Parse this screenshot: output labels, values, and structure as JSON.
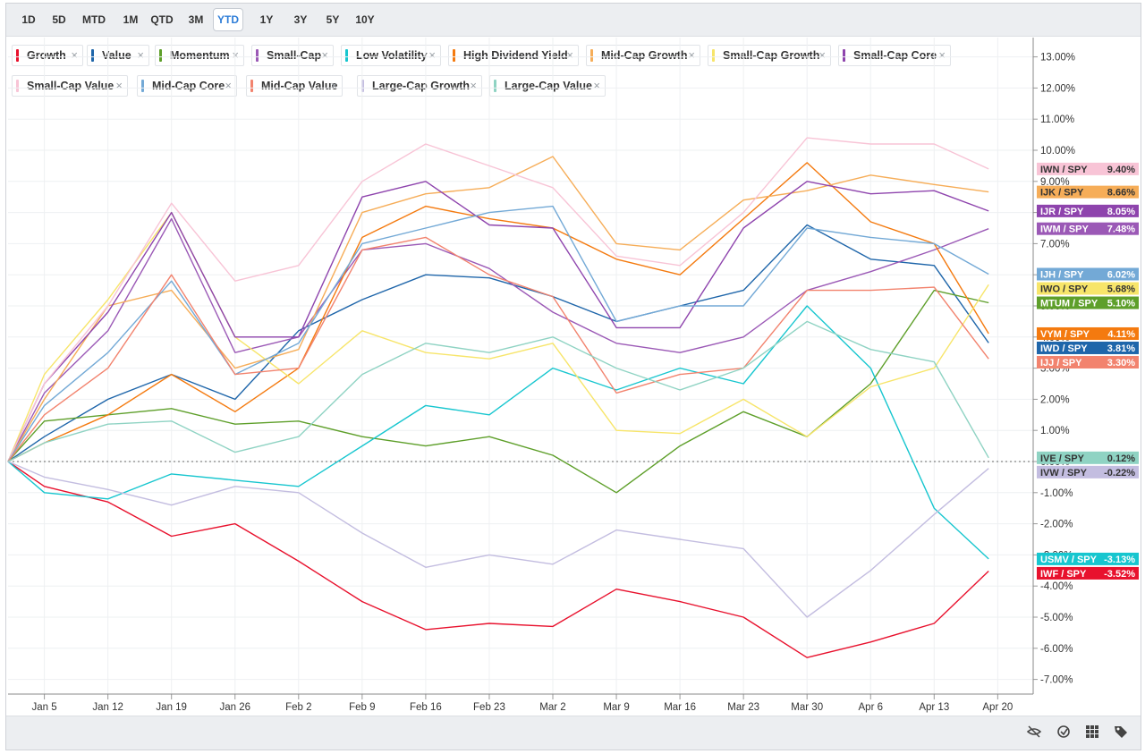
{
  "ranges": [
    "1D",
    "5D",
    "MTD",
    "1M",
    "QTD",
    "3M",
    "YTD",
    "1Y",
    "3Y",
    "5Y",
    "10Y"
  ],
  "active_range": "YTD",
  "toolbar_icons": [
    "hide-icon",
    "compare-icon",
    "grid-icon",
    "tag-icon"
  ],
  "chart_data": {
    "type": "line",
    "title": "",
    "xlabel": "",
    "ylabel": "",
    "ylim": [
      -7.5,
      13.5
    ],
    "x_ticks": [
      "Jan 5",
      "Jan 12",
      "Jan 19",
      "Jan 26",
      "Feb 2",
      "Feb 9",
      "Feb 16",
      "Feb 23",
      "Mar 2",
      "Mar 9",
      "Mar 16",
      "Mar 23",
      "Mar 30",
      "Apr 6",
      "Apr 13",
      "Apr 20"
    ],
    "x_tick_days": [
      4,
      11,
      18,
      25,
      32,
      39,
      46,
      53,
      60,
      67,
      74,
      81,
      88,
      95,
      102,
      109
    ],
    "y_ticks": [
      13,
      12,
      11,
      10,
      9,
      8,
      7,
      6,
      5,
      4,
      3,
      2,
      1,
      0,
      -1,
      -2,
      -3,
      -4,
      -5,
      -6,
      -7
    ],
    "y_tick_labels": [
      "13.00%",
      "12.00%",
      "11.00%",
      "10.00%",
      "9.00%",
      "8.00%",
      "7.00%",
      "6.00%",
      "5.00%",
      "4.00%",
      "3.00%",
      "2.00%",
      "1.00%",
      "0.00%",
      "-1.00%",
      "-2.00%",
      "-3.00%",
      "-4.00%",
      "-5.00%",
      "-6.00%",
      "-7.00%"
    ],
    "series": [
      {
        "name": "Growth",
        "ticker": "IWF / SPY",
        "last": "-3.52%",
        "color": "#e8112d",
        "x": [
          0,
          4,
          11,
          18,
          25,
          32,
          39,
          46,
          53,
          60,
          67,
          74,
          81,
          88,
          95,
          102,
          108
        ],
        "values": [
          0,
          -0.8,
          -1.3,
          -2.4,
          -2.0,
          -3.2,
          -4.5,
          -5.4,
          -5.2,
          -5.3,
          -4.1,
          -4.5,
          -5.0,
          -6.3,
          -5.8,
          -5.2,
          -3.52
        ]
      },
      {
        "name": "Value",
        "ticker": "IWD / SPY",
        "last": "3.81%",
        "color": "#1f66aa",
        "x": [
          0,
          4,
          11,
          18,
          25,
          32,
          39,
          46,
          53,
          60,
          67,
          74,
          81,
          88,
          95,
          102,
          108
        ],
        "values": [
          0,
          0.8,
          2.0,
          2.8,
          2.0,
          4.2,
          5.2,
          6.0,
          5.9,
          5.3,
          4.5,
          5.0,
          5.5,
          7.6,
          6.5,
          6.3,
          3.81
        ]
      },
      {
        "name": "Momentum",
        "ticker": "MTUM / SPY",
        "last": "5.10%",
        "color": "#5e9f2a",
        "x": [
          0,
          4,
          11,
          18,
          25,
          32,
          39,
          46,
          53,
          60,
          67,
          74,
          81,
          88,
          95,
          102,
          108
        ],
        "values": [
          0,
          1.3,
          1.5,
          1.7,
          1.2,
          1.3,
          0.8,
          0.5,
          0.8,
          0.2,
          -1.0,
          0.5,
          1.6,
          0.8,
          2.5,
          5.5,
          5.1
        ]
      },
      {
        "name": "Small-Cap",
        "ticker": "IWM / SPY",
        "last": "7.48%",
        "color": "#9b59b6",
        "x": [
          0,
          4,
          11,
          18,
          25,
          32,
          39,
          46,
          53,
          60,
          67,
          74,
          81,
          88,
          95,
          102,
          108
        ],
        "values": [
          0,
          2.2,
          4.2,
          7.8,
          3.5,
          4.0,
          6.8,
          7.0,
          6.2,
          4.8,
          3.8,
          3.5,
          4.0,
          5.5,
          6.1,
          6.8,
          7.48
        ]
      },
      {
        "name": "Low Volatility",
        "ticker": "USMV / SPY",
        "last": "-3.13%",
        "color": "#17c6cf",
        "x": [
          0,
          4,
          11,
          18,
          25,
          32,
          39,
          46,
          53,
          60,
          67,
          74,
          81,
          88,
          95,
          102,
          108
        ],
        "values": [
          0,
          -1.0,
          -1.2,
          -0.4,
          -0.6,
          -0.8,
          0.5,
          1.8,
          1.5,
          3.0,
          2.3,
          3.0,
          2.5,
          5.0,
          3.0,
          -1.5,
          -3.13
        ]
      },
      {
        "name": "High Dividend Yield",
        "ticker": "VYM / SPY",
        "last": "4.11%",
        "color": "#f47a0f",
        "x": [
          0,
          4,
          11,
          18,
          25,
          32,
          39,
          46,
          53,
          60,
          67,
          74,
          81,
          88,
          95,
          102,
          108
        ],
        "values": [
          0,
          0.6,
          1.5,
          2.8,
          1.6,
          3.0,
          7.2,
          8.2,
          7.8,
          7.5,
          6.5,
          6.0,
          7.8,
          9.6,
          7.7,
          7.0,
          4.11
        ]
      },
      {
        "name": "Mid-Cap Growth",
        "ticker": "IJK / SPY",
        "last": "8.66%",
        "color": "#f6ad58",
        "x": [
          0,
          4,
          11,
          18,
          25,
          32,
          39,
          46,
          53,
          60,
          67,
          74,
          81,
          88,
          95,
          102,
          108
        ],
        "values": [
          0,
          2.0,
          5.0,
          5.5,
          3.0,
          3.6,
          8.0,
          8.6,
          8.8,
          9.8,
          7.0,
          6.8,
          8.4,
          8.7,
          9.2,
          8.9,
          8.66
        ]
      },
      {
        "name": "Small-Cap Growth",
        "ticker": "IWO / SPY",
        "last": "5.68%",
        "color": "#f7e56a",
        "x": [
          0,
          4,
          11,
          18,
          25,
          32,
          39,
          46,
          53,
          60,
          67,
          74,
          81,
          88,
          95,
          102,
          108
        ],
        "values": [
          0,
          2.8,
          5.2,
          8.0,
          4.0,
          2.5,
          4.2,
          3.5,
          3.3,
          3.8,
          1.0,
          0.9,
          2.0,
          0.8,
          2.4,
          3.0,
          5.68
        ]
      },
      {
        "name": "Small-Cap Core",
        "ticker": "IJR / SPY",
        "last": "8.05%",
        "color": "#8e44ad",
        "x": [
          0,
          4,
          11,
          18,
          25,
          32,
          39,
          46,
          53,
          60,
          67,
          74,
          81,
          88,
          95,
          102,
          108
        ],
        "values": [
          0,
          2.5,
          4.8,
          8.0,
          4.0,
          4.0,
          8.5,
          9.0,
          7.6,
          7.5,
          4.3,
          4.3,
          7.5,
          9.0,
          8.6,
          8.7,
          8.05
        ]
      },
      {
        "name": "Small-Cap Value",
        "ticker": "IWN / SPY",
        "last": "9.40%",
        "color": "#f8c4d6",
        "x": [
          0,
          4,
          11,
          18,
          25,
          32,
          39,
          46,
          53,
          60,
          67,
          74,
          81,
          88,
          95,
          102,
          108
        ],
        "values": [
          0,
          2.5,
          5.0,
          8.3,
          5.8,
          6.3,
          9.0,
          10.2,
          9.5,
          8.8,
          6.6,
          6.3,
          8.0,
          10.4,
          10.2,
          10.2,
          9.4
        ]
      },
      {
        "name": "Mid-Cap Core",
        "ticker": "IJH / SPY",
        "last": "6.02%",
        "color": "#73a9d6",
        "x": [
          0,
          4,
          11,
          18,
          25,
          32,
          39,
          46,
          53,
          60,
          67,
          74,
          81,
          88,
          95,
          102,
          108
        ],
        "values": [
          0,
          1.8,
          3.5,
          5.8,
          2.8,
          3.8,
          7.0,
          7.5,
          8.0,
          8.2,
          4.5,
          5.0,
          5.0,
          7.5,
          7.2,
          7.0,
          6.02
        ]
      },
      {
        "name": "Mid-Cap Value",
        "ticker": "IJJ / SPY",
        "last": "3.30%",
        "color": "#f2836e",
        "x": [
          0,
          4,
          11,
          18,
          25,
          32,
          39,
          46,
          53,
          60,
          67,
          74,
          81,
          88,
          95,
          102,
          108
        ],
        "values": [
          0,
          1.5,
          3.0,
          6.0,
          2.8,
          3.0,
          6.8,
          7.2,
          6.0,
          5.3,
          2.2,
          2.8,
          3.0,
          5.5,
          5.5,
          5.6,
          3.3
        ]
      },
      {
        "name": "Large-Cap Growth",
        "ticker": "IVW / SPY",
        "last": "-0.22%",
        "color": "#c3bde0",
        "x": [
          0,
          4,
          11,
          18,
          25,
          32,
          39,
          46,
          53,
          60,
          67,
          74,
          81,
          88,
          95,
          102,
          108
        ],
        "values": [
          0,
          -0.5,
          -0.9,
          -1.4,
          -0.8,
          -1.0,
          -2.3,
          -3.4,
          -3.0,
          -3.3,
          -2.2,
          -2.5,
          -2.8,
          -5.0,
          -3.5,
          -1.7,
          -0.22
        ]
      },
      {
        "name": "Large-Cap Value",
        "ticker": "IVE / SPY",
        "last": "0.12%",
        "color": "#8fd3c3",
        "x": [
          0,
          4,
          11,
          18,
          25,
          32,
          39,
          46,
          53,
          60,
          67,
          74,
          81,
          88,
          95,
          102,
          108
        ],
        "values": [
          0,
          0.6,
          1.2,
          1.3,
          0.3,
          0.8,
          2.8,
          3.8,
          3.5,
          4.0,
          3.0,
          2.3,
          3.0,
          4.5,
          3.6,
          3.2,
          0.12
        ]
      }
    ]
  }
}
